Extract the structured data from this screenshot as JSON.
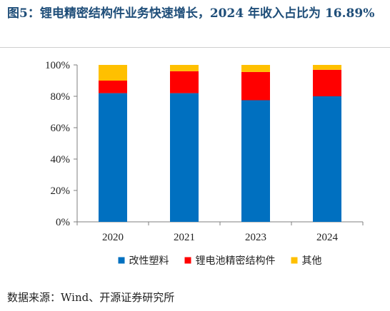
{
  "header": {
    "title": "图5：锂电精密结构件业务快速增长，2024 年收入占比为 16.89%"
  },
  "footer": {
    "source": "数据来源：Wind、开源证券研究所"
  },
  "chart_data": {
    "type": "bar",
    "stacked": true,
    "categories": [
      "2020",
      "2021",
      "2023",
      "2024"
    ],
    "series": [
      {
        "name": "改性塑料",
        "color": "#0070c0",
        "values": [
          82,
          82,
          77.5,
          80
        ]
      },
      {
        "name": "锂电池精密结构件",
        "color": "#ff0000",
        "values": [
          8,
          14,
          18,
          16.89
        ]
      },
      {
        "name": "其他",
        "color": "#ffc000",
        "values": [
          10,
          4,
          4.5,
          3.11
        ]
      }
    ],
    "y_ticks": [
      "0%",
      "20%",
      "40%",
      "60%",
      "80%",
      "100%"
    ],
    "ylim": [
      0,
      100
    ],
    "grid": false,
    "legend_position": "bottom"
  }
}
